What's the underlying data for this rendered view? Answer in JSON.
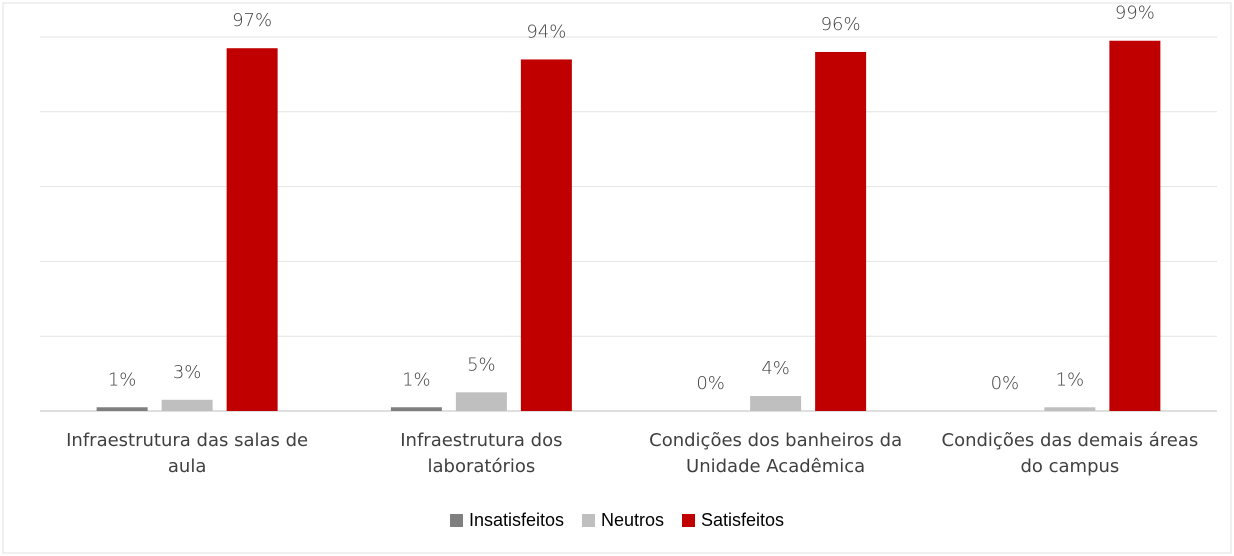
{
  "chart_data": {
    "type": "bar",
    "categories": [
      "Infraestrutura das salas de aula",
      "Infraestrutura dos laboratórios",
      "Condições dos banheiros da Unidade Acadêmica",
      "Condições das demais áreas do campus"
    ],
    "series": [
      {
        "name": "Insatisfeitos",
        "color": "#7f7f7f",
        "values": [
          1,
          1,
          0,
          0
        ],
        "value_labels": [
          "1%",
          "1%",
          "0%",
          "0%"
        ]
      },
      {
        "name": "Neutros",
        "color": "#bfbfbf",
        "values": [
          3,
          5,
          4,
          1
        ],
        "value_labels": [
          "3%",
          "5%",
          "4%",
          "1%"
        ]
      },
      {
        "name": "Satisfeitos",
        "color": "#c00000",
        "values": [
          97,
          94,
          96,
          99
        ],
        "value_labels": [
          "97%",
          "94%",
          "96%",
          "99%"
        ]
      }
    ],
    "ylim": [
      0,
      100
    ],
    "yticks": [
      0,
      20,
      40,
      60,
      80,
      100
    ],
    "grid": true,
    "legend": "bottom"
  }
}
